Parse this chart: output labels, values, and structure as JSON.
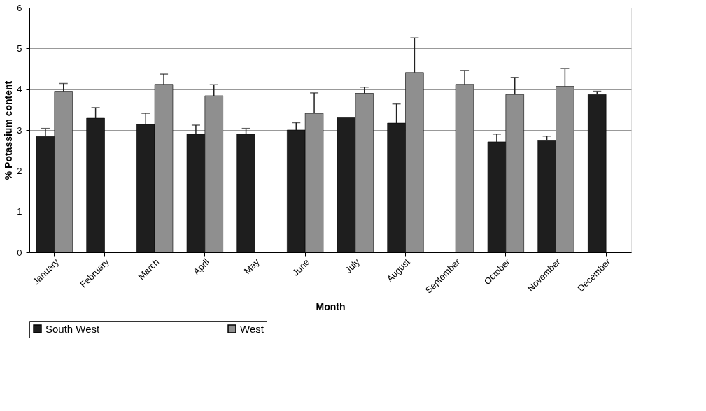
{
  "chart_data": {
    "type": "bar",
    "xlabel": "Month",
    "ylabel": "% Potassium content",
    "categories": [
      "January",
      "February",
      "March",
      "April",
      "May",
      "June",
      "July",
      "August",
      "September",
      "October",
      "November",
      "December"
    ],
    "series": [
      {
        "name": "South West",
        "color": "#1e1e1e",
        "values": [
          2.84,
          3.29,
          3.14,
          2.9,
          2.9,
          3.0,
          3.3,
          3.17,
          null,
          2.71,
          2.74,
          3.87
        ],
        "errors": [
          [
            2.84,
            3.04
          ],
          [
            3.29,
            3.55
          ],
          [
            3.14,
            3.41
          ],
          [
            2.9,
            3.12
          ],
          [
            2.9,
            3.04
          ],
          [
            3.0,
            3.18
          ],
          null,
          [
            3.17,
            3.64
          ],
          null,
          [
            2.71,
            2.9
          ],
          [
            2.74,
            2.85
          ],
          [
            3.87,
            3.95
          ]
        ]
      },
      {
        "name": "West",
        "color": "#8f8f8f",
        "values": [
          3.95,
          null,
          4.12,
          3.84,
          null,
          3.41,
          3.9,
          4.41,
          4.12,
          3.87,
          4.07,
          null
        ],
        "errors": [
          [
            3.95,
            4.14
          ],
          null,
          [
            4.12,
            4.37
          ],
          [
            3.84,
            4.11
          ],
          null,
          [
            3.41,
            3.91
          ],
          [
            3.9,
            4.05
          ],
          [
            4.41,
            5.26
          ],
          [
            4.12,
            4.46
          ],
          [
            3.87,
            4.29
          ],
          [
            4.07,
            4.51
          ],
          null
        ]
      }
    ],
    "ylim": [
      0,
      6
    ],
    "yticks": [
      0,
      1,
      2,
      3,
      4,
      5,
      6
    ],
    "grid": "y",
    "legend": "bottom"
  }
}
